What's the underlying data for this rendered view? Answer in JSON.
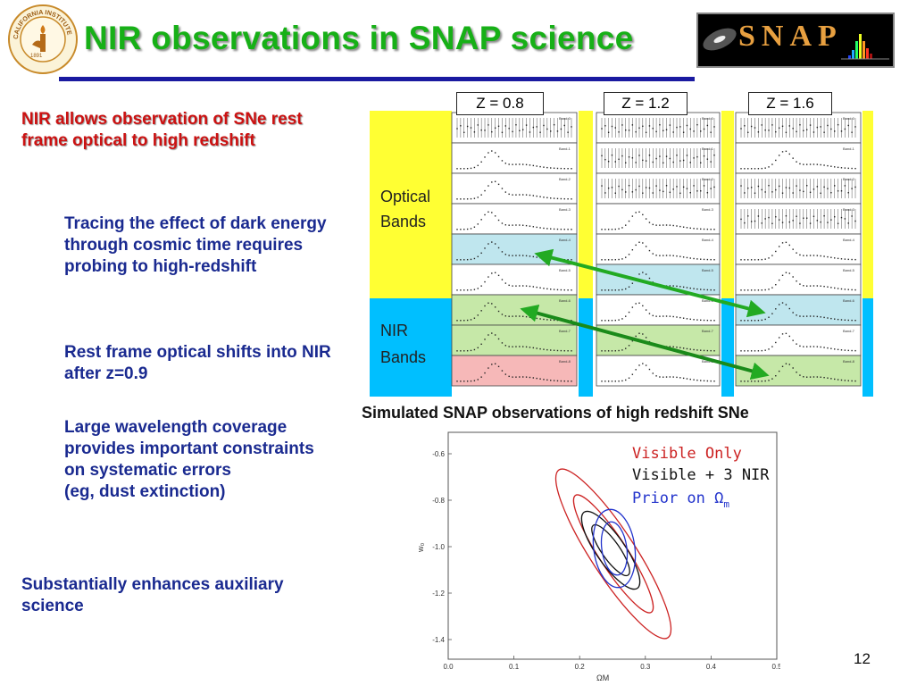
{
  "title": "NIR observations in SNAP science",
  "logo_text": "CALIFORNIA INSTITUTE OF TECHNOLOGY",
  "logo_year": "1891",
  "banner_text": "SNAP",
  "left_text": {
    "point1": "NIR allows observation of SNe rest frame optical to high redshift",
    "point2": "Tracing the effect of dark energy through cosmic time requires probing to high-redshift",
    "point3": "Rest frame optical shifts into NIR after z=0.9",
    "point4_line1": "Large wavelength coverage provides important constraints on systematic errors",
    "point4_line2": "(eg, dust extinction)",
    "point5": "Substantially enhances auxiliary science"
  },
  "lightcurves": {
    "redshifts": [
      "Z = 0.8",
      "Z = 1.2",
      "Z = 1.6"
    ],
    "optical_label_1": "Optical",
    "optical_label_2": "Bands",
    "nir_label_1": "NIR",
    "nir_label_2": "Bands",
    "band_labels": [
      "Band-0",
      "Band-1",
      "Band-2",
      "Band-3",
      "Band-4",
      "Band-5",
      "Band-6",
      "Band-7",
      "Band-8"
    ],
    "caption": "Simulated SNAP observations of high redshift SNe",
    "colors": {
      "optical": "#ffff33",
      "nir": "#00bfff",
      "highlight_blue": "#bfe6ee",
      "highlight_green": "#c6e8a8",
      "highlight_red": "#f6b8b8",
      "arrow": "#22aa22"
    }
  },
  "contour": {
    "legend": [
      "Visible Only",
      "Visible + 3 NIR",
      "Prior on Ω"
    ],
    "legend_sub": "m",
    "legend_colors": [
      "#cc2222",
      "#111111",
      "#2233cc"
    ],
    "y_axis_label": "w₀",
    "x_axis_label": "ΩM",
    "y_ticks": [
      "-0.6",
      "-0.8",
      "-1.0",
      "-1.2",
      "-1.4"
    ],
    "x_ticks": [
      "0.0",
      "0.1",
      "0.2",
      "0.3",
      "0.4",
      "0.5"
    ]
  },
  "page_number": "12"
}
